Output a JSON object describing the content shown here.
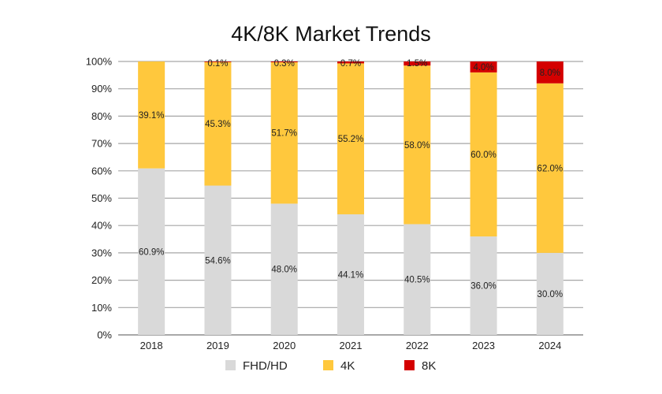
{
  "chart_data": {
    "type": "bar",
    "stacked": true,
    "title": "4K/8K Market Trends",
    "categories": [
      "2018",
      "2019",
      "2020",
      "2021",
      "2022",
      "2023",
      "2024"
    ],
    "y_ticks": [
      "0%",
      "10%",
      "20%",
      "30%",
      "40%",
      "50%",
      "60%",
      "70%",
      "80%",
      "90%",
      "100%"
    ],
    "ylim": [
      0,
      100
    ],
    "grid": true,
    "legend_position": "bottom",
    "series": [
      {
        "name": "FHD/HD",
        "color": "#d9d9d9",
        "values": [
          60.9,
          54.6,
          48.0,
          44.1,
          40.5,
          36.0,
          30.0
        ],
        "labels": [
          "60.9%",
          "54.6%",
          "48.0%",
          "44.1%",
          "40.5%",
          "36.0%",
          "30.0%"
        ]
      },
      {
        "name": "4K",
        "color": "#ffc83d",
        "values": [
          39.1,
          45.3,
          51.7,
          55.2,
          58.0,
          60.0,
          62.0
        ],
        "labels": [
          "39.1%",
          "45.3%",
          "51.7%",
          "55.2%",
          "58.0%",
          "60.0%",
          "62.0%"
        ]
      },
      {
        "name": "8K",
        "color": "#d40000",
        "values": [
          0,
          0.1,
          0.3,
          0.7,
          1.5,
          4.0,
          8.0
        ],
        "labels": [
          "",
          "0.1%",
          "0.3%",
          "0.7%",
          "1.5%",
          "4.0%",
          "8.0%"
        ]
      }
    ]
  }
}
